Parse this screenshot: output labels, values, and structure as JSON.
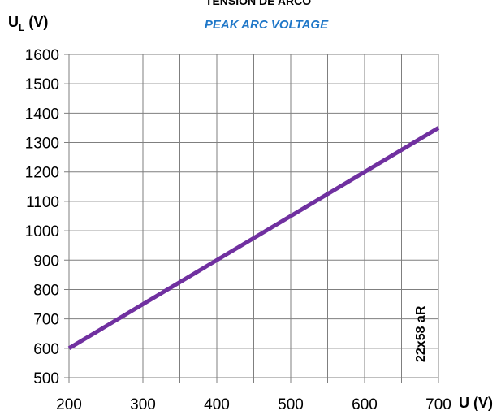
{
  "chart_data": {
    "type": "line",
    "title": "TENSION DE ARCO",
    "subtitle": "PEAK ARC VOLTAGE",
    "ylabel_main": "U",
    "ylabel_sub": "L",
    "ylabel_unit": " (V)",
    "xlabel": "U (V)",
    "xlim": [
      200,
      700
    ],
    "ylim": [
      500,
      1600
    ],
    "xticks": [
      "200",
      "300",
      "400",
      "500",
      "600",
      "700"
    ],
    "yticks": [
      "500",
      "600",
      "700",
      "800",
      "900",
      "1000",
      "1100",
      "1200",
      "1300",
      "1400",
      "1500",
      "1600"
    ],
    "grid": true,
    "series": [
      {
        "name": "22x58 aR",
        "color": "#7030a0",
        "x": [
          200,
          700
        ],
        "y": [
          600,
          1350
        ]
      }
    ],
    "annotation": "22x58 aR"
  }
}
